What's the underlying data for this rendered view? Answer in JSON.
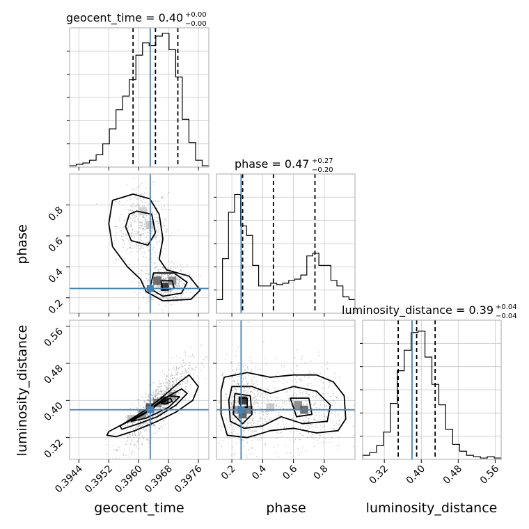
{
  "chart_data": {
    "type": "corner",
    "parameters": [
      "geocent_time",
      "phase",
      "luminosity_distance"
    ],
    "axis_labels": {
      "geocent_time": "geocent_time",
      "phase": "phase",
      "luminosity_distance": "luminosity_distance"
    },
    "titles": [
      {
        "param": "geocent_time",
        "prefix": "geocent_time = 0.40",
        "sup": "+0.00",
        "sub": "−0.00"
      },
      {
        "param": "phase",
        "prefix": "phase = 0.47",
        "sup": "+0.27",
        "sub": "−0.20"
      },
      {
        "param": "luminosity_distance",
        "prefix": "luminosity_distance = 0.39",
        "sup": "+0.04",
        "sub": "−0.04"
      }
    ],
    "ranges": {
      "geocent_time": [
        0.39415,
        0.39788
      ],
      "phase": [
        0.1,
        1.0
      ],
      "luminosity_distance": [
        0.273,
        0.573
      ]
    },
    "ticks": {
      "geocent_time": [
        {
          "value": 0.3944,
          "label": "0.3944"
        },
        {
          "value": 0.3952,
          "label": "0.3952"
        },
        {
          "value": 0.396,
          "label": "0.3960"
        },
        {
          "value": 0.3968,
          "label": "0.3968"
        },
        {
          "value": 0.3976,
          "label": "0.3976"
        }
      ],
      "phase": [
        {
          "value": 0.2,
          "label": "0.2"
        },
        {
          "value": 0.4,
          "label": "0.4"
        },
        {
          "value": 0.6,
          "label": "0.6"
        },
        {
          "value": 0.8,
          "label": "0.8"
        }
      ],
      "luminosity_distance": [
        {
          "value": 0.32,
          "label": "0.32"
        },
        {
          "value": 0.4,
          "label": "0.40"
        },
        {
          "value": 0.48,
          "label": "0.48"
        },
        {
          "value": 0.56,
          "label": "0.56"
        }
      ]
    },
    "injection": {
      "geocent_time": 0.39631,
      "phase": 0.26,
      "luminosity_distance": 0.38
    },
    "quantiles": {
      "geocent_time": [
        0.39585,
        0.39645,
        0.39705
      ],
      "phase": [
        0.27,
        0.47,
        0.74
      ],
      "luminosity_distance": [
        0.35,
        0.39,
        0.43
      ]
    },
    "histograms": {
      "geocent_time": [
        0.01,
        0.02,
        0.03,
        0.05,
        0.09,
        0.17,
        0.28,
        0.42,
        0.52,
        0.64,
        0.82,
        0.91,
        0.89,
        0.96,
        0.98,
        0.86,
        0.66,
        0.35,
        0.18,
        0.05,
        0.01
      ],
      "phase": [
        0.1,
        0.4,
        0.74,
        0.87,
        0.64,
        0.57,
        0.35,
        0.2,
        0.2,
        0.22,
        0.21,
        0.22,
        0.24,
        0.25,
        0.28,
        0.42,
        0.44,
        0.35,
        0.35,
        0.24,
        0.2,
        0.12,
        0.1
      ],
      "luminosity_distance": [
        0.03,
        0.05,
        0.1,
        0.2,
        0.41,
        0.65,
        0.8,
        0.93,
        0.94,
        0.75,
        0.55,
        0.4,
        0.22,
        0.11,
        0.06,
        0.03,
        0.02,
        0.01,
        0.02,
        0.01
      ]
    },
    "pairs": [
      {
        "x": "geocent_time",
        "y": "phase",
        "scatter_modes": [
          {
            "mx": 0.3961,
            "my": 0.67,
            "sx": 0.00035,
            "sy": 0.12,
            "rho": 0,
            "w": 0.45
          },
          {
            "mx": 0.3967,
            "my": 0.29,
            "sx": 0.0003,
            "sy": 0.06,
            "rho": 0,
            "w": 0.55
          }
        ],
        "density_cells": [
          {
            "x": 0.3963,
            "y": 0.67,
            "level": 0.25
          },
          {
            "x": 0.3967,
            "y": 0.27,
            "level": 0.95
          },
          {
            "x": 0.3965,
            "y": 0.31,
            "level": 0.7
          },
          {
            "x": 0.3969,
            "y": 0.31,
            "level": 0.55
          },
          {
            "x": 0.3961,
            "y": 0.76,
            "level": 0.2
          }
        ],
        "contours": [
          [
            [
              0.39585,
              0.87
            ],
            [
              0.3963,
              0.84
            ],
            [
              0.39655,
              0.74
            ],
            [
              0.39665,
              0.58
            ],
            [
              0.39655,
              0.45
            ],
            [
              0.39675,
              0.38
            ],
            [
              0.39735,
              0.34
            ],
            [
              0.39765,
              0.25
            ],
            [
              0.3974,
              0.19
            ],
            [
              0.39665,
              0.18
            ],
            [
              0.3962,
              0.24
            ],
            [
              0.39605,
              0.32
            ],
            [
              0.3957,
              0.4
            ],
            [
              0.3953,
              0.53
            ],
            [
              0.3952,
              0.68
            ],
            [
              0.3953,
              0.83
            ]
          ],
          [
            [
              0.39595,
              0.76
            ],
            [
              0.39635,
              0.74
            ],
            [
              0.39645,
              0.62
            ],
            [
              0.39625,
              0.54
            ],
            [
              0.3958,
              0.57
            ],
            [
              0.39565,
              0.66
            ],
            [
              0.39575,
              0.74
            ]
          ],
          [
            [
              0.3964,
              0.36
            ],
            [
              0.39695,
              0.36
            ],
            [
              0.3973,
              0.3
            ],
            [
              0.39715,
              0.23
            ],
            [
              0.39665,
              0.21
            ],
            [
              0.3963,
              0.26
            ]
          ],
          [
            [
              0.3966,
              0.31
            ],
            [
              0.3969,
              0.31
            ],
            [
              0.39695,
              0.26
            ],
            [
              0.39665,
              0.25
            ]
          ]
        ]
      },
      {
        "x": "geocent_time",
        "y": "luminosity_distance",
        "scatter_modes": [
          {
            "mx": 0.3965,
            "my": 0.39,
            "sx": 0.00045,
            "sy": 0.045,
            "rho": 0.85,
            "w": 1.0
          }
        ],
        "density_cells": [
          {
            "x": 0.3967,
            "y": 0.4,
            "level": 0.95
          },
          {
            "x": 0.3963,
            "y": 0.385,
            "level": 0.8
          },
          {
            "x": 0.3965,
            "y": 0.395,
            "level": 0.6
          },
          {
            "x": 0.3961,
            "y": 0.37,
            "level": 0.5
          },
          {
            "x": 0.3969,
            "y": 0.41,
            "level": 0.45
          },
          {
            "x": 0.3958,
            "y": 0.36,
            "level": 0.3
          }
        ],
        "contours": [
          [
            [
              0.3952,
              0.333
            ],
            [
              0.3956,
              0.35
            ],
            [
              0.3962,
              0.38
            ],
            [
              0.3966,
              0.405
            ],
            [
              0.3971,
              0.44
            ],
            [
              0.39735,
              0.455
            ],
            [
              0.3976,
              0.43
            ],
            [
              0.39745,
              0.4
            ],
            [
              0.397,
              0.375
            ],
            [
              0.3965,
              0.355
            ],
            [
              0.3959,
              0.335
            ],
            [
              0.3954,
              0.322
            ],
            [
              0.39515,
              0.325
            ]
          ],
          [
            [
              0.3955,
              0.345
            ],
            [
              0.3962,
              0.375
            ],
            [
              0.3967,
              0.405
            ],
            [
              0.39715,
              0.425
            ],
            [
              0.3973,
              0.415
            ],
            [
              0.397,
              0.39
            ],
            [
              0.3965,
              0.365
            ],
            [
              0.396,
              0.35
            ],
            [
              0.39555,
              0.338
            ]
          ],
          [
            [
              0.3958,
              0.355
            ],
            [
              0.3963,
              0.378
            ],
            [
              0.3968,
              0.41
            ],
            [
              0.3971,
              0.408
            ],
            [
              0.3968,
              0.385
            ],
            [
              0.3962,
              0.362
            ]
          ],
          [
            [
              0.3966,
              0.395
            ],
            [
              0.39685,
              0.405
            ],
            [
              0.3969,
              0.398
            ],
            [
              0.3967,
              0.392
            ]
          ]
        ]
      },
      {
        "x": "phase",
        "y": "luminosity_distance",
        "scatter_modes": [
          {
            "mx": 0.28,
            "my": 0.39,
            "sx": 0.08,
            "sy": 0.05,
            "rho": 0,
            "w": 0.55
          },
          {
            "mx": 0.68,
            "my": 0.385,
            "sx": 0.13,
            "sy": 0.05,
            "rho": 0,
            "w": 0.45
          }
        ],
        "density_cells": [
          {
            "x": 0.27,
            "y": 0.4,
            "level": 0.95
          },
          {
            "x": 0.27,
            "y": 0.37,
            "level": 0.75
          },
          {
            "x": 0.31,
            "y": 0.38,
            "level": 0.6
          },
          {
            "x": 0.23,
            "y": 0.38,
            "level": 0.45
          },
          {
            "x": 0.63,
            "y": 0.39,
            "level": 0.55
          },
          {
            "x": 0.67,
            "y": 0.38,
            "level": 0.7
          },
          {
            "x": 0.45,
            "y": 0.385,
            "level": 0.25
          }
        ],
        "contours": [
          [
            [
              0.15,
              0.45
            ],
            [
              0.3,
              0.46
            ],
            [
              0.45,
              0.45
            ],
            [
              0.6,
              0.455
            ],
            [
              0.75,
              0.455
            ],
            [
              0.86,
              0.44
            ],
            [
              0.93,
              0.41
            ],
            [
              0.94,
              0.36
            ],
            [
              0.89,
              0.335
            ],
            [
              0.75,
              0.33
            ],
            [
              0.6,
              0.34
            ],
            [
              0.45,
              0.335
            ],
            [
              0.3,
              0.32
            ],
            [
              0.17,
              0.325
            ],
            [
              0.13,
              0.37
            ],
            [
              0.13,
              0.42
            ]
          ],
          [
            [
              0.2,
              0.43
            ],
            [
              0.33,
              0.43
            ],
            [
              0.45,
              0.415
            ],
            [
              0.6,
              0.43
            ],
            [
              0.75,
              0.42
            ],
            [
              0.84,
              0.39
            ],
            [
              0.82,
              0.355
            ],
            [
              0.66,
              0.35
            ],
            [
              0.52,
              0.365
            ],
            [
              0.4,
              0.345
            ],
            [
              0.28,
              0.34
            ],
            [
              0.19,
              0.355
            ],
            [
              0.18,
              0.4
            ]
          ],
          [
            [
              0.22,
              0.415
            ],
            [
              0.32,
              0.41
            ],
            [
              0.33,
              0.37
            ],
            [
              0.27,
              0.35
            ],
            [
              0.21,
              0.37
            ]
          ],
          [
            [
              0.58,
              0.405
            ],
            [
              0.7,
              0.405
            ],
            [
              0.72,
              0.37
            ],
            [
              0.62,
              0.365
            ]
          ],
          [
            [
              0.25,
              0.405
            ],
            [
              0.3,
              0.405
            ],
            [
              0.3,
              0.385
            ],
            [
              0.26,
              0.385
            ]
          ]
        ]
      }
    ]
  }
}
